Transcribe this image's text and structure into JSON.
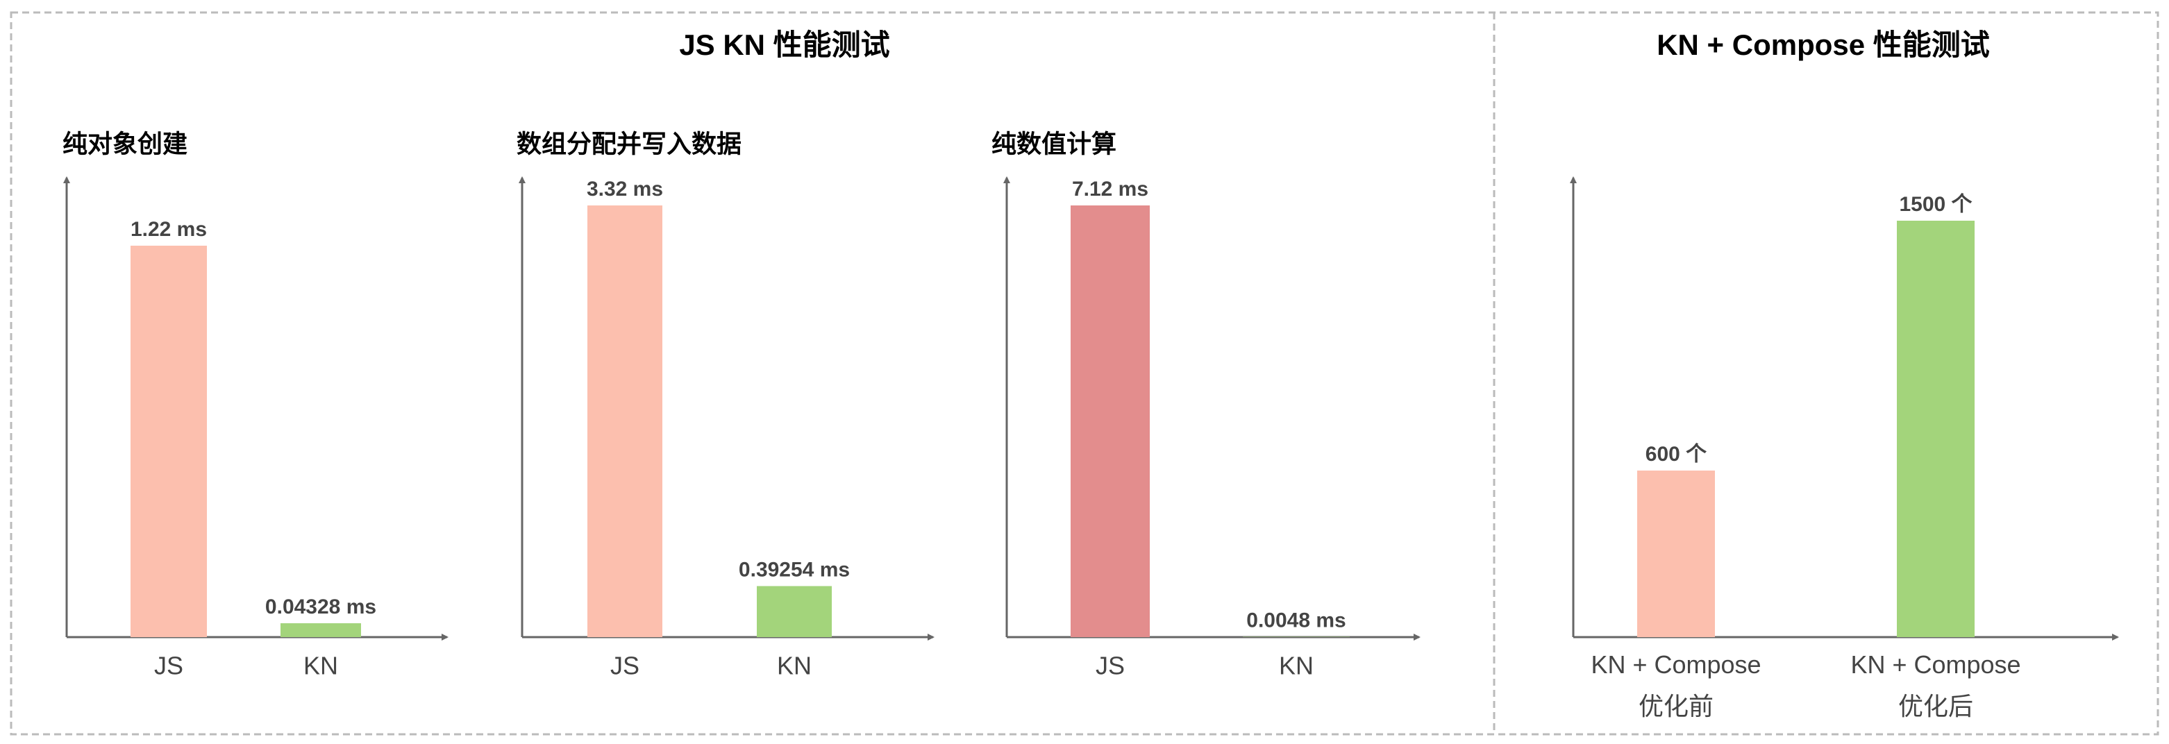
{
  "sections": [
    "JS KN 性能测试",
    "KN + Compose 性能测试"
  ],
  "chart_data": [
    {
      "type": "bar",
      "title": "纯对象创建",
      "categories": [
        "JS",
        "KN"
      ],
      "values": [
        1.22,
        0.04328
      ],
      "value_labels": [
        "1.22 ms",
        "0.04328 ms"
      ],
      "colors": [
        "#fcbfae",
        "#a3d47b"
      ]
    },
    {
      "type": "bar",
      "title": "数组分配并写入数据",
      "categories": [
        "JS",
        "KN"
      ],
      "values": [
        3.32,
        0.39254
      ],
      "value_labels": [
        "3.32 ms",
        "0.39254 ms"
      ],
      "colors": [
        "#fcbfae",
        "#a3d47b"
      ]
    },
    {
      "type": "bar",
      "title": "纯数值计算",
      "categories": [
        "JS",
        "KN"
      ],
      "values": [
        7.12,
        0.0048
      ],
      "value_labels": [
        "7.12 ms",
        "0.0048 ms"
      ],
      "colors": [
        "#e38d8d",
        "#a3d47b"
      ]
    },
    {
      "type": "bar",
      "categories": [
        "KN + Compose 优化前",
        "KN + Compose 优化后"
      ],
      "values": [
        600,
        1500
      ],
      "value_labels": [
        "600 个",
        "1500 个"
      ],
      "colors": [
        "#fcbfae",
        "#a3d47b"
      ]
    }
  ]
}
